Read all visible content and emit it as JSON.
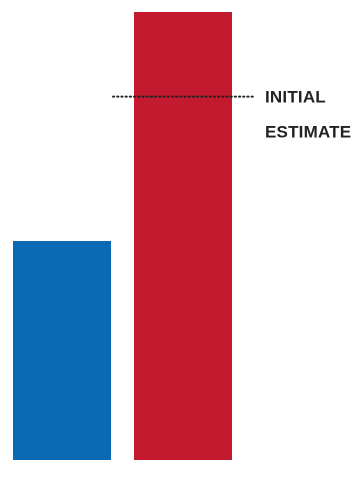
{
  "chart_data": {
    "type": "bar",
    "title": "",
    "xlabel": "",
    "ylabel": "",
    "categories": [
      "",
      ""
    ],
    "values": [
      2.2,
      4.5
    ],
    "colors": [
      "#0A6AB3",
      "#C41A2F"
    ],
    "ylim": [
      0,
      4.5
    ],
    "grid": false,
    "legend": "none",
    "annotations": [
      {
        "type": "reference-line",
        "style": "dotted",
        "value": 3.65,
        "label_lines": [
          "INITIAL",
          "ESTIMATE"
        ]
      }
    ]
  }
}
